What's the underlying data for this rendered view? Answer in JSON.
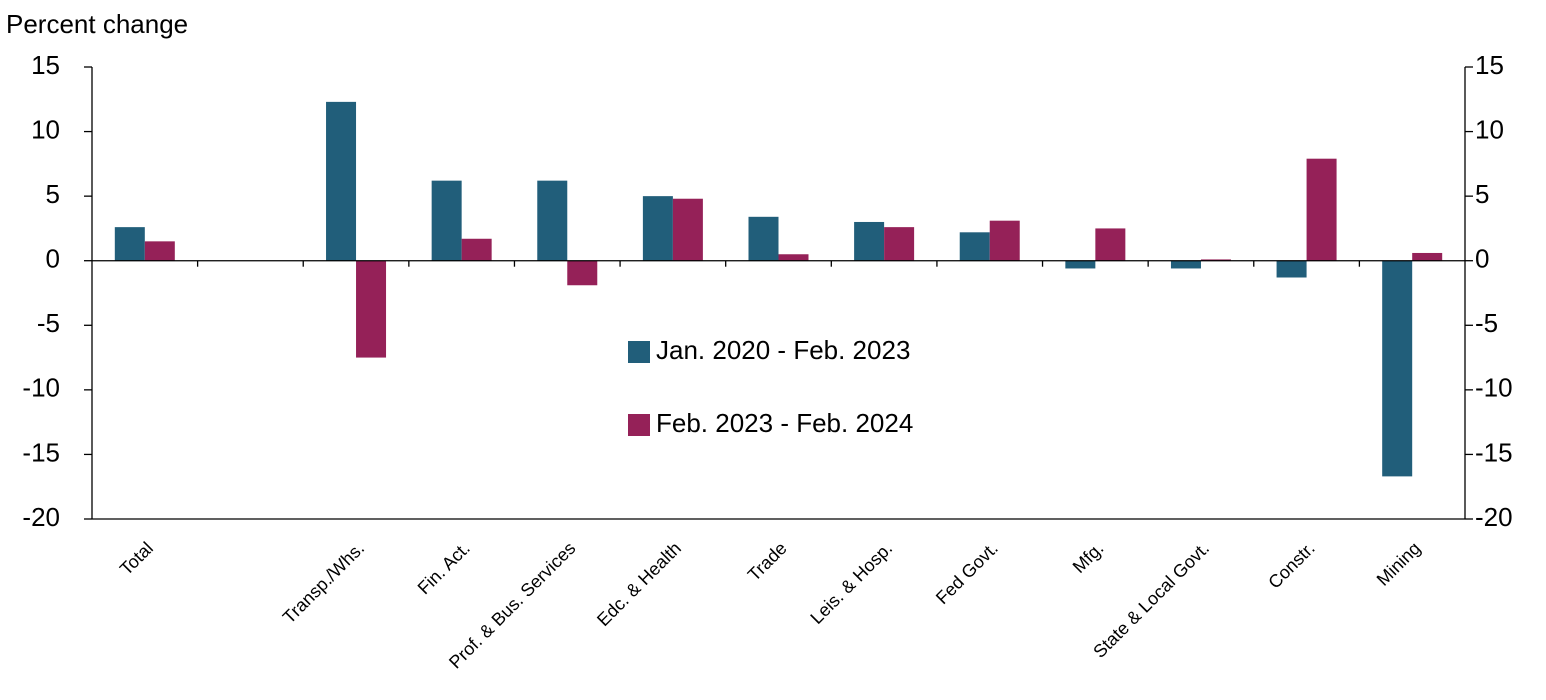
{
  "chart_data": {
    "type": "bar",
    "y_label": "Percent change",
    "categories": [
      "Total",
      null,
      "Transp./Whs.",
      "Fin. Act.",
      "Prof. & Bus. Services",
      "Edc. & Health",
      "Trade",
      "Leis. & Hosp.",
      "Fed Govt.",
      "Mfg.",
      "State & Local Govt.",
      "Constr.",
      "Mining"
    ],
    "series": [
      {
        "name": "Jan. 2020 - Feb. 2023",
        "color": "#215e7a",
        "values": [
          2.6,
          null,
          12.3,
          6.2,
          6.2,
          5.0,
          3.4,
          3.0,
          2.2,
          -0.6,
          -0.6,
          -1.3,
          -16.7
        ]
      },
      {
        "name": "Feb. 2023 - Feb. 2024",
        "color": "#952158",
        "values": [
          1.5,
          null,
          -7.5,
          1.7,
          -1.9,
          4.8,
          0.5,
          2.6,
          3.1,
          2.5,
          0.1,
          7.9,
          0.6
        ]
      }
    ],
    "ylim": [
      -20,
      15
    ],
    "yticks": [
      15,
      10,
      5,
      0,
      -5,
      -10,
      -15,
      -20
    ],
    "y2lim": [
      -20,
      15
    ],
    "y2ticks": [
      15,
      10,
      5,
      0,
      -5,
      -10,
      -15,
      -20
    ],
    "legend": "center",
    "grid": false
  }
}
